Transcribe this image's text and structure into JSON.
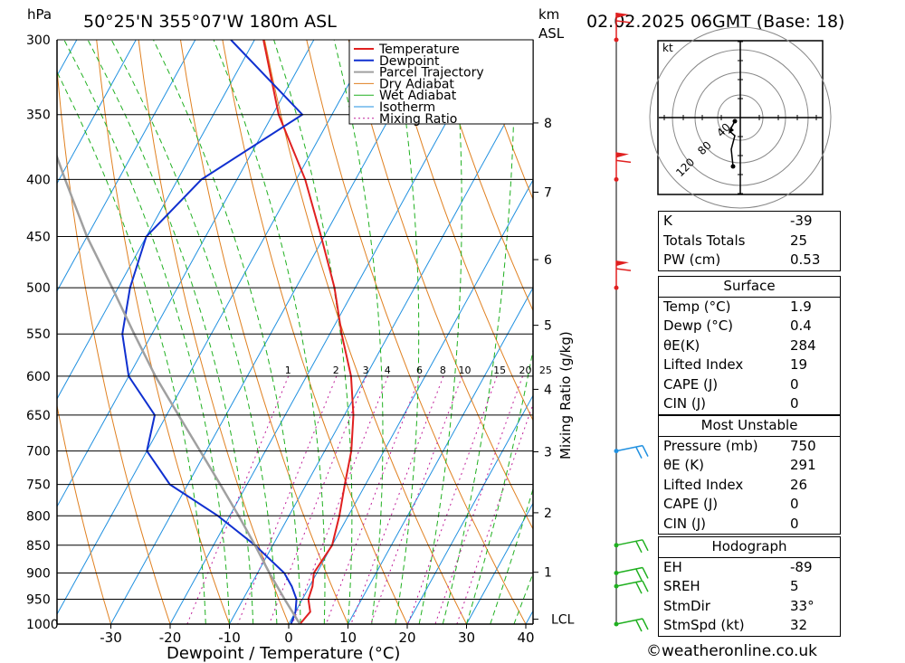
{
  "header": {
    "location": "50°25'N  355°07'W  180m  ASL",
    "run": "02.02.2025  06GMT  (Base: 18)",
    "pressure_unit": "hPa",
    "height_unit_1": "km",
    "height_unit_2": "ASL"
  },
  "colors": {
    "temperature": "#e02020",
    "dewpoint": "#1030d0",
    "parcel": "#a0a0a0",
    "dry_adiabat": "#e08020",
    "wet_adiabat": "#20b020",
    "isotherm": "#2090e0",
    "mixing_ratio": "#c0209a"
  },
  "legend": [
    "Temperature",
    "Dewpoint",
    "Parcel Trajectory",
    "Dry Adiabat",
    "Wet Adiabat",
    "Isotherm",
    "Mixing Ratio"
  ],
  "chart_data": {
    "type": "line",
    "title": "",
    "xlabel": "Dewpoint / Temperature (°C)",
    "ylabel": "hPa",
    "xlim": [
      -40,
      40
    ],
    "ylim": [
      1000,
      300
    ],
    "y_scale": "log",
    "x_ticks": [
      "-30",
      "-20",
      "-10",
      "0",
      "10",
      "20",
      "30",
      "40"
    ],
    "pressure_levels": [
      "300",
      "350",
      "400",
      "450",
      "500",
      "550",
      "600",
      "650",
      "700",
      "750",
      "800",
      "850",
      "900",
      "950",
      "1000"
    ],
    "km_ticks": [
      "8",
      "7",
      "6",
      "5",
      "4",
      "3",
      "2",
      "1"
    ],
    "lcl_label": "LCL",
    "mixing_ratio_label": "Mixing Ratio (g/kg)",
    "mixing_ratio_values": [
      "1",
      "2",
      "3",
      "4",
      "6",
      "8",
      "10",
      "15",
      "20",
      "25"
    ],
    "series": [
      {
        "name": "Temperature",
        "pressure": [
          1000,
          975,
          950,
          925,
          900,
          850,
          800,
          750,
          700,
          650,
          600,
          550,
          500,
          450,
          400,
          350,
          300
        ],
        "values": [
          1.9,
          2.5,
          1.0,
          0.5,
          -0.5,
          0.0,
          -1.5,
          -3.5,
          -5.5,
          -8.5,
          -12.5,
          -18.0,
          -23.5,
          -30.5,
          -38.5,
          -49.0,
          -58.5
        ]
      },
      {
        "name": "Dewpoint",
        "pressure": [
          1000,
          975,
          950,
          925,
          900,
          850,
          800,
          750,
          700,
          650,
          600,
          550,
          500,
          450,
          400,
          350,
          300
        ],
        "values": [
          0.4,
          0.0,
          -1.0,
          -3.0,
          -5.5,
          -13.0,
          -22.0,
          -33.0,
          -40.0,
          -42.0,
          -50.0,
          -55.0,
          -58.0,
          -60.0,
          -56.0,
          -45.0,
          -64.0
        ]
      },
      {
        "name": "Parcel Trajectory",
        "pressure": [
          1000,
          950,
          900,
          850,
          800,
          750,
          700,
          650,
          600,
          550,
          500,
          450,
          400,
          350,
          300
        ],
        "values": [
          1.9,
          -3.0,
          -8.0,
          -13.0,
          -18.5,
          -24.5,
          -31.0,
          -38.0,
          -45.5,
          -53.0,
          -61.0,
          -70.0,
          -79.0,
          -89.0,
          -100.0
        ]
      }
    ]
  },
  "hodograph": {
    "unit": "kt",
    "ring_labels": [
      "40",
      "80",
      "120"
    ]
  },
  "indices": {
    "general": [
      {
        "label": "K",
        "value": "-39"
      },
      {
        "label": "Totals Totals",
        "value": "25"
      },
      {
        "label": "PW (cm)",
        "value": "0.53"
      }
    ],
    "surface_title": "Surface",
    "surface": [
      {
        "label": "Temp (°C)",
        "value": "1.9"
      },
      {
        "label": "Dewp (°C)",
        "value": "0.4"
      },
      {
        "label": "θE(K)",
        "value": "284"
      },
      {
        "label": "Lifted Index",
        "value": "19"
      },
      {
        "label": "CAPE (J)",
        "value": "0"
      },
      {
        "label": "CIN (J)",
        "value": "0"
      }
    ],
    "unstable_title": "Most Unstable",
    "unstable": [
      {
        "label": "Pressure (mb)",
        "value": "750"
      },
      {
        "label": "θE (K)",
        "value": "291"
      },
      {
        "label": "Lifted Index",
        "value": "26"
      },
      {
        "label": "CAPE (J)",
        "value": "0"
      },
      {
        "label": "CIN (J)",
        "value": "0"
      }
    ],
    "hodograph_title": "Hodograph",
    "hodo": [
      {
        "label": "EH",
        "value": "-89"
      },
      {
        "label": "SREH",
        "value": "5"
      },
      {
        "label": "StmDir",
        "value": "33°"
      },
      {
        "label": "StmSpd (kt)",
        "value": "32"
      }
    ]
  },
  "footer": "©weatheronline.co.uk"
}
